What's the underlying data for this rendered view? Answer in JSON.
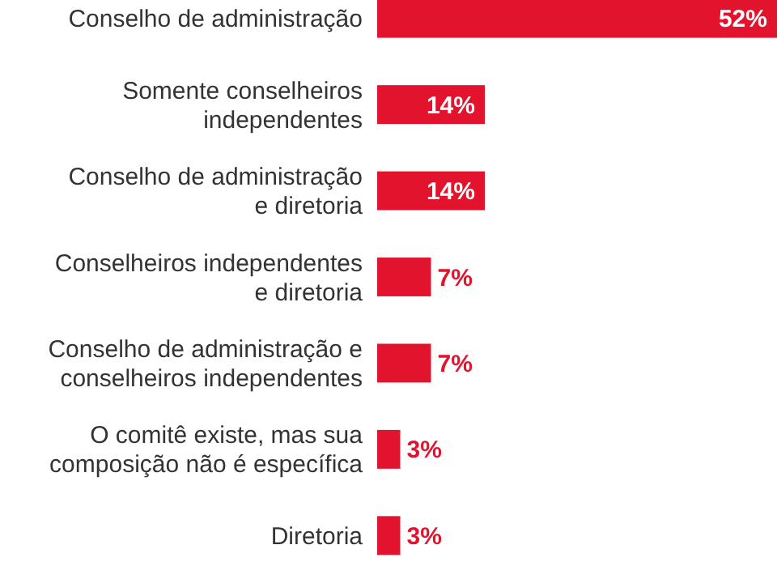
{
  "chart_data": {
    "type": "bar",
    "orientation": "horizontal",
    "categories": [
      "Conselho de administração",
      "Somente conselheiros\nindependentes",
      "Conselho de administração\ne diretoria",
      "Conselheiros independentes\ne diretoria",
      "Conselho de administração e\nconselheiros independentes",
      "O comitê existe, mas sua\ncomposição não é específica",
      "Diretoria"
    ],
    "values": [
      52,
      14,
      14,
      7,
      7,
      3,
      3
    ],
    "value_labels": [
      "52%",
      "14%",
      "14%",
      "7%",
      "7%",
      "3%",
      "3%"
    ],
    "color": "#e2142d"
  }
}
